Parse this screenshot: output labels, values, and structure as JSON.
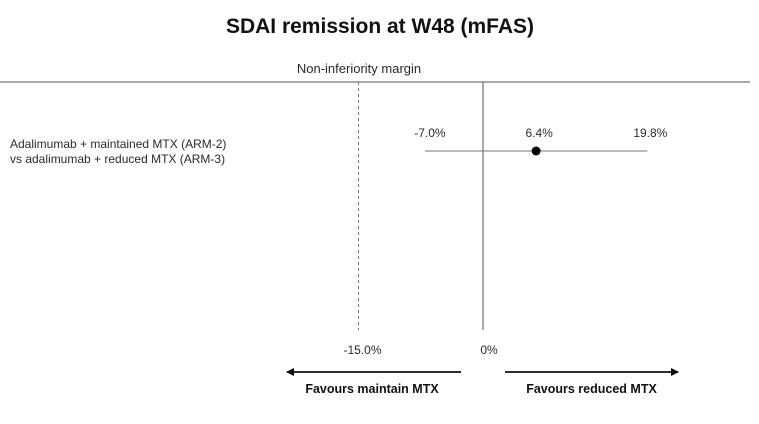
{
  "chart_data": {
    "type": "forest",
    "title": "SDAI remission at W48 (mFAS)",
    "reference_line_label": "Non-inferiority margin",
    "comparison": {
      "label_line1": "Adalimumab + maintained MTX (ARM-2)",
      "label_line2": "vs adalimumab + reduced MTX (ARM-3)",
      "estimate": 6.4,
      "ci_lower": -7.0,
      "ci_upper": 19.8,
      "estimate_label": "6.4%",
      "ci_lower_label": "-7.0%",
      "ci_upper_label": "19.8%"
    },
    "non_inferiority_margin": -15.0,
    "zero_line": 0,
    "x_ticks": [
      {
        "value": -15.0,
        "label": "-15.0%"
      },
      {
        "value": 0,
        "label": "0%"
      }
    ],
    "direction_left": "Favours maintain MTX",
    "direction_right": "Favours reduced MTX"
  }
}
